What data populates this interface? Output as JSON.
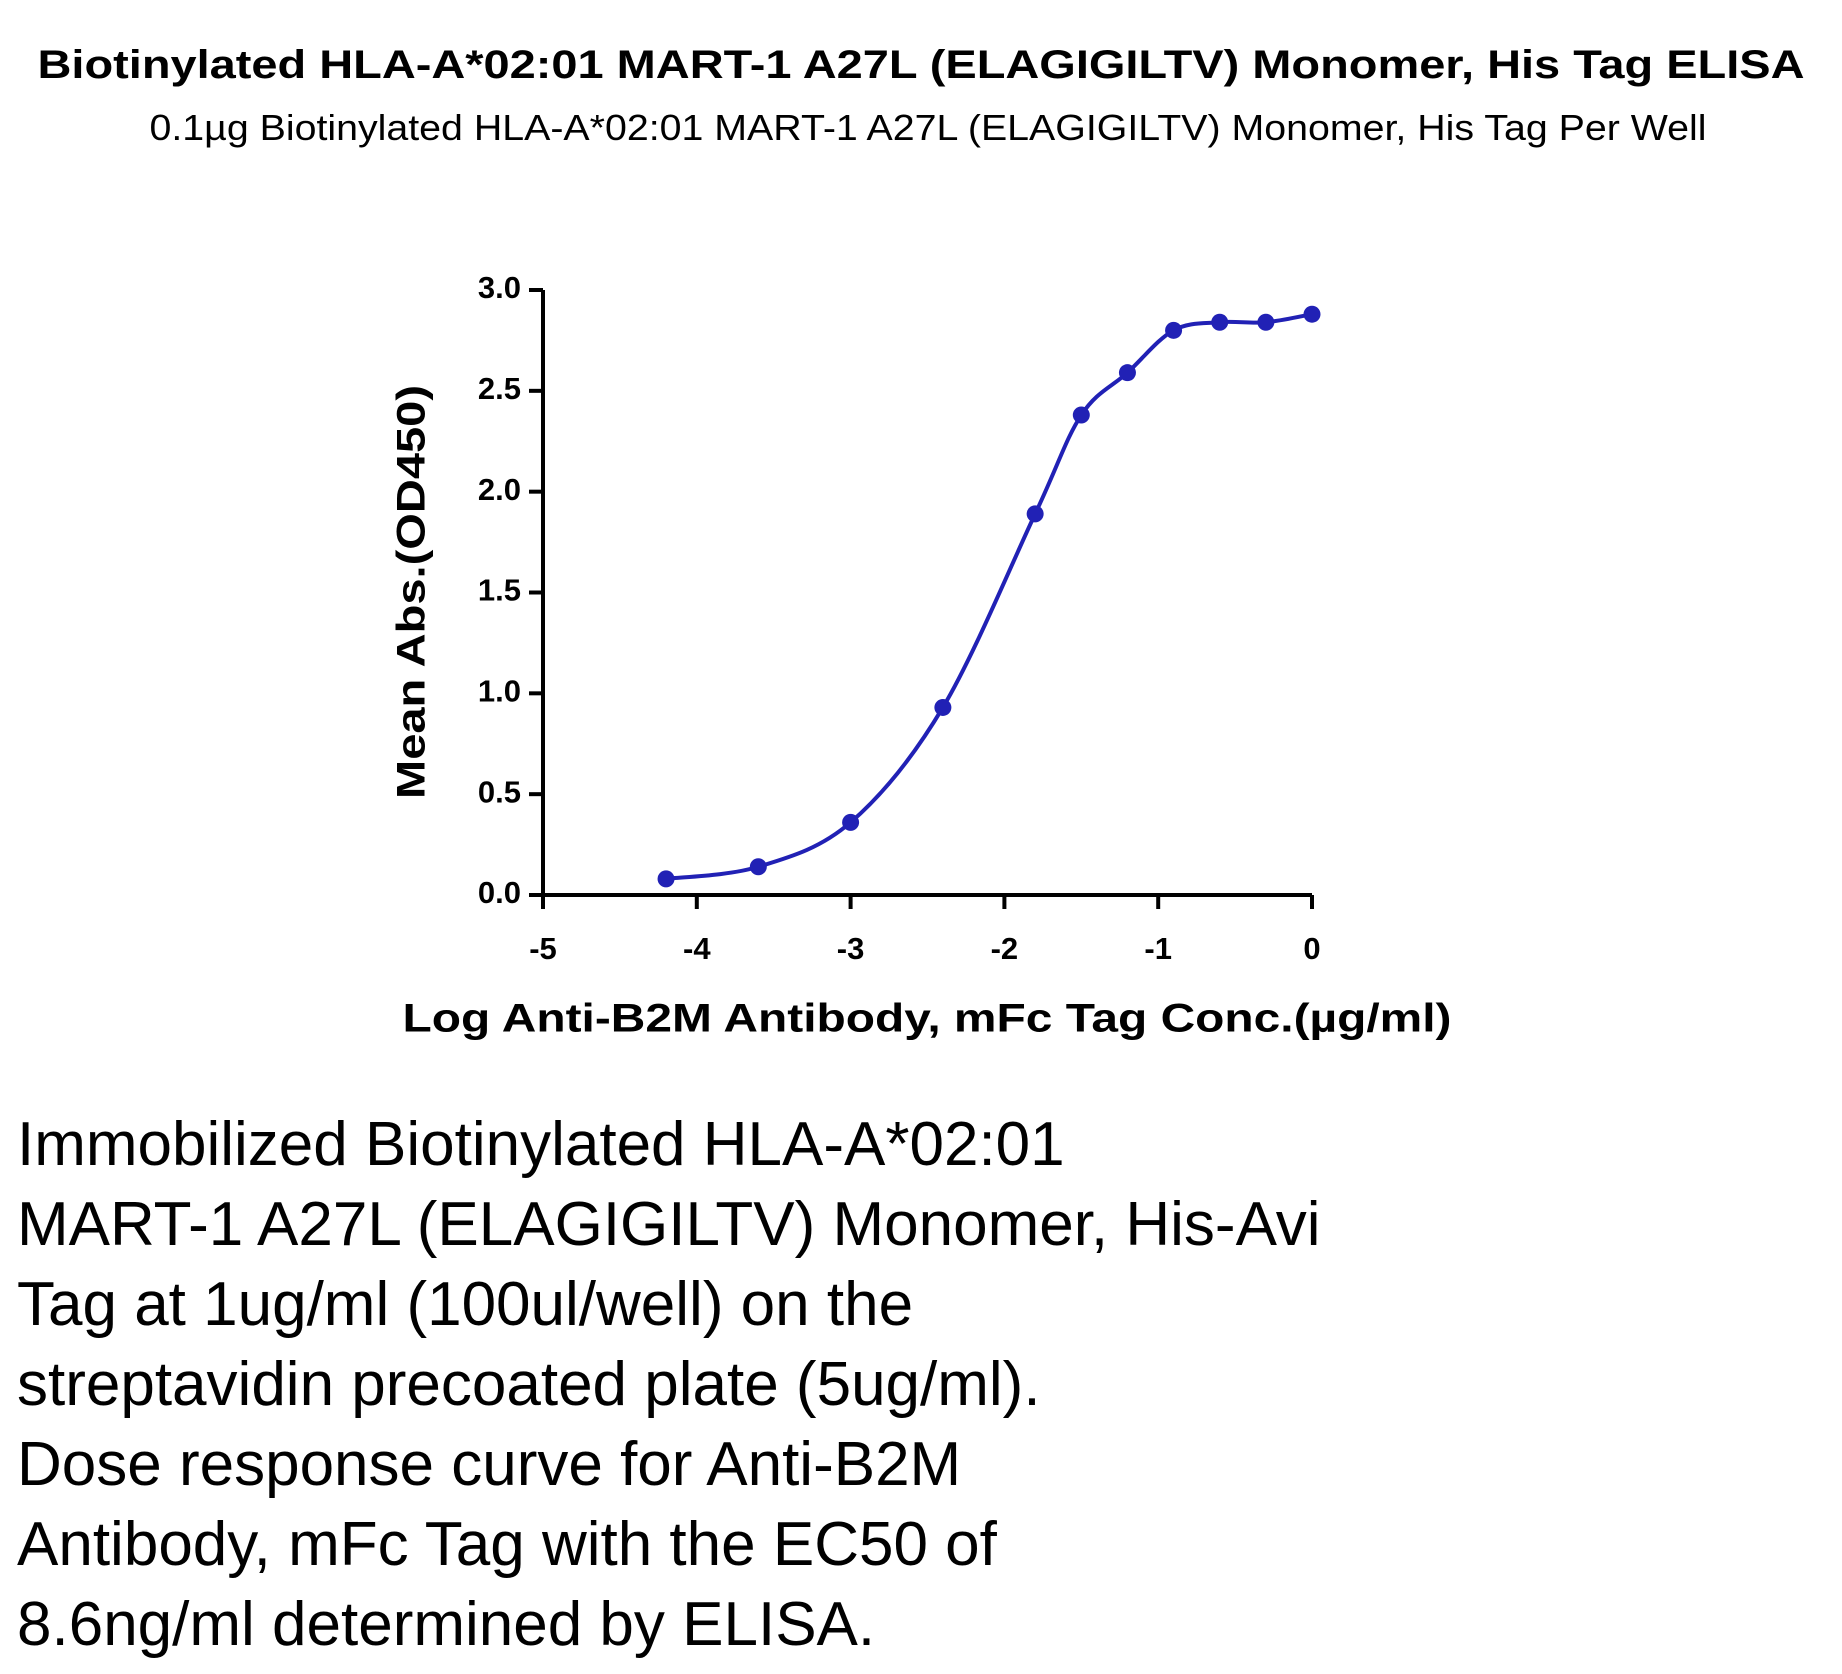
{
  "chart_data": {
    "type": "line",
    "title": "Biotinylated HLA-A*02:01 MART-1 A27L (ELAGIGILTV) Monomer, His Tag ELISA",
    "subtitle": "0.1µg Biotinylated HLA-A*02:01 MART-1 A27L (ELAGIGILTV) Monomer, His Tag Per Well",
    "x_label": "Log Anti-B2M Antibody, mFc Tag Conc.(µg/ml)",
    "y_label": "Mean Abs.(OD450)",
    "x": [
      -4.2,
      -3.6,
      -3.0,
      -2.4,
      -1.8,
      -1.5,
      -1.2,
      -0.9,
      -0.6,
      -0.3,
      0
    ],
    "series": [
      {
        "color": "#2121b5",
        "values": [
          0.08,
          0.14,
          0.36,
          0.93,
          1.89,
          2.38,
          2.59,
          2.8,
          2.84,
          2.84,
          2.88
        ]
      }
    ],
    "xlim": [
      -5,
      0
    ],
    "xticks": [
      -5,
      -4,
      -3,
      -2,
      -1,
      0
    ],
    "ylim": [
      0,
      3
    ],
    "yticks": [
      {
        "value": 0,
        "label": "0.0"
      },
      0.5,
      {
        "value": 1,
        "label": "1.0"
      },
      1.5,
      {
        "value": 2,
        "label": "2.0"
      },
      2.5,
      {
        "value": 3,
        "label": "3.0"
      }
    ]
  },
  "caption": [
    "Immobilized Biotinylated HLA-A*02:01",
    "MART-1 A27L (ELAGIGILTV) Monomer, His-Avi",
    "Tag at 1ug/ml (100ul/well) on the",
    "streptavidin precoated plate (5ug/ml).",
    "Dose response curve for Anti-B2M",
    "Antibody, mFc Tag with the EC50 of",
    "8.6ng/ml determined by ELISA."
  ]
}
